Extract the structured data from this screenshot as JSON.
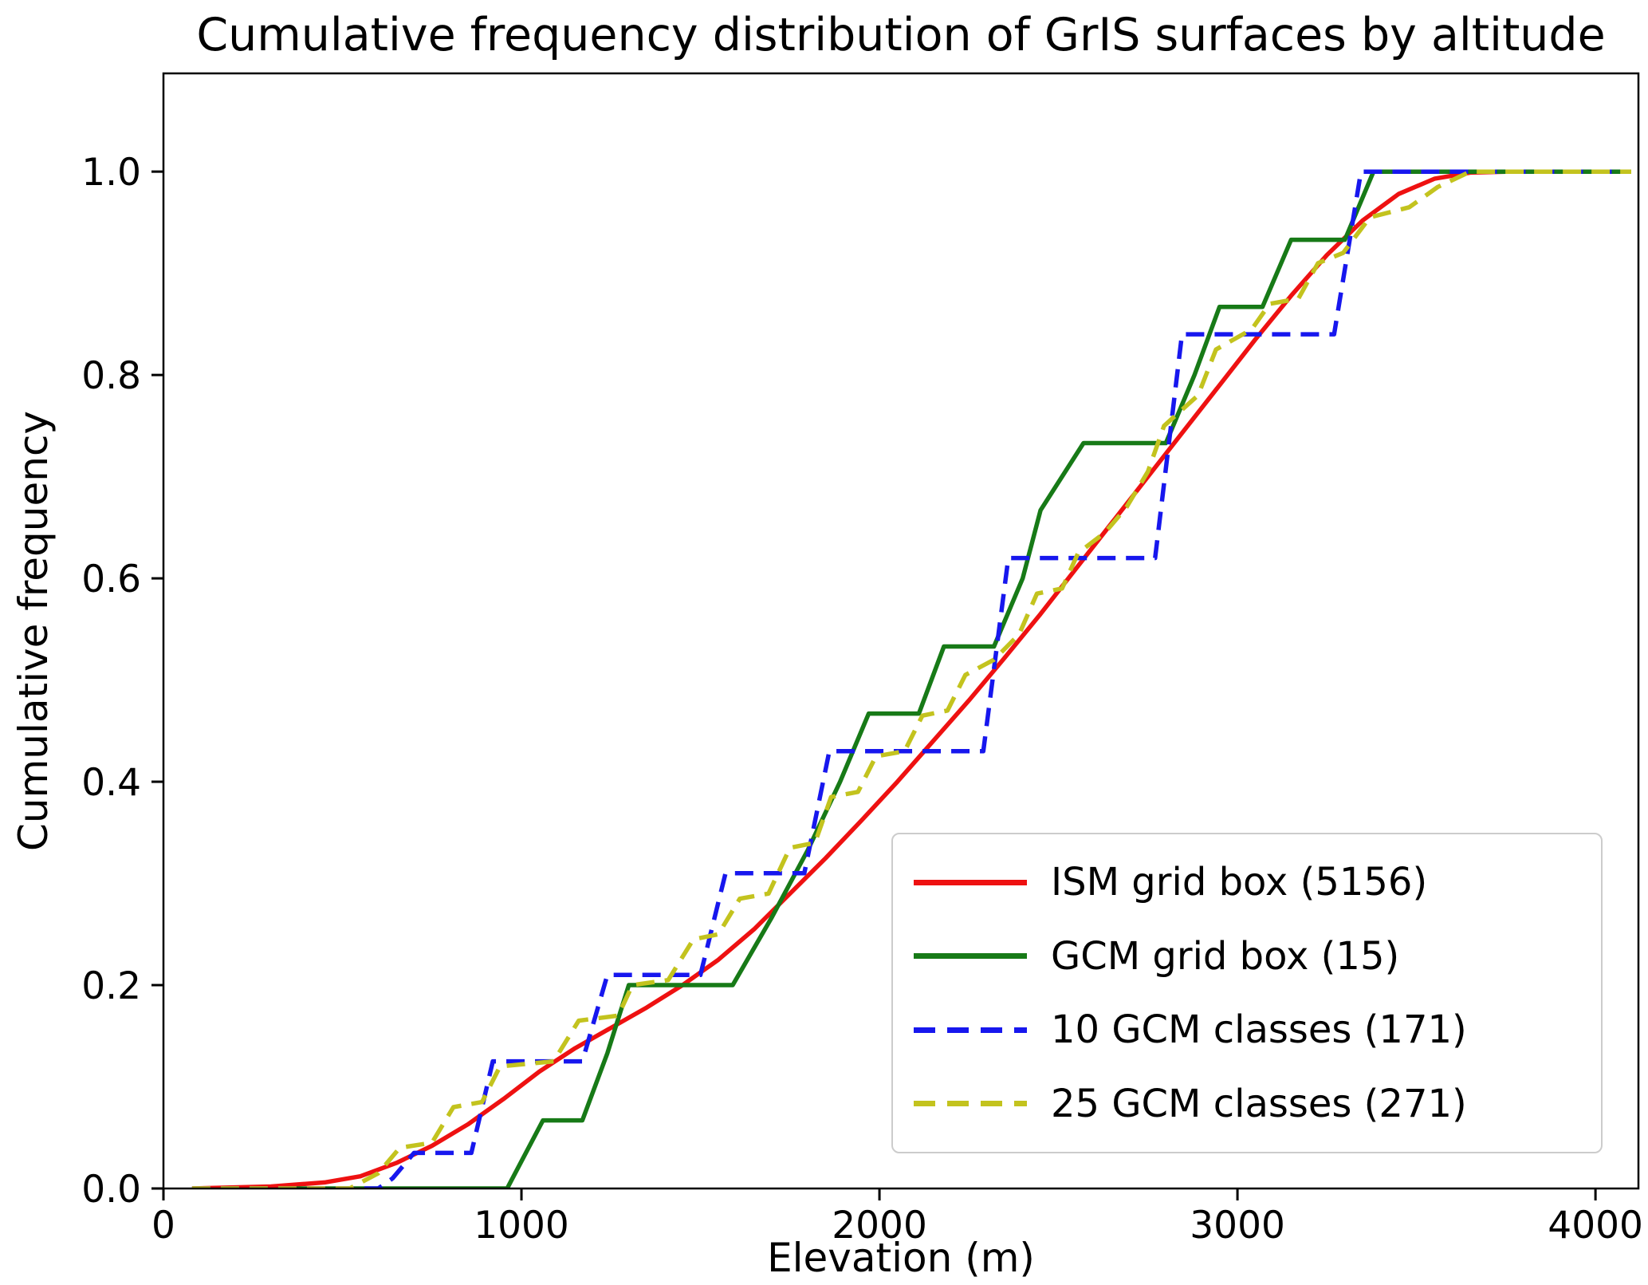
{
  "chart_data": {
    "type": "line",
    "title": "Cumulative frequency distribution of GrIS surfaces by altitude",
    "xlabel": "Elevation (m)",
    "ylabel": "Cumulative frequency",
    "xlim": [
      0,
      4120
    ],
    "ylim": [
      0,
      1.0966
    ],
    "x_ticks": [
      0,
      1000,
      2000,
      3000,
      4000
    ],
    "x_tick_labels": [
      "0",
      "1000",
      "2000",
      "3000",
      "4000"
    ],
    "y_ticks": [
      0.0,
      0.2,
      0.4,
      0.6,
      0.8,
      1.0
    ],
    "y_tick_labels": [
      "0.0",
      "0.2",
      "0.4",
      "0.6",
      "0.8",
      "1.0"
    ],
    "grid": false,
    "legend_position": "lower right",
    "series": [
      {
        "name": "ISM grid box (5156)",
        "slug": "ism-grid-box",
        "color": "#ee1111",
        "style": "solid",
        "points": [
          [
            80,
            0
          ],
          [
            300,
            0.002
          ],
          [
            450,
            0.006
          ],
          [
            550,
            0.012
          ],
          [
            650,
            0.025
          ],
          [
            750,
            0.042
          ],
          [
            850,
            0.063
          ],
          [
            950,
            0.088
          ],
          [
            1050,
            0.115
          ],
          [
            1150,
            0.138
          ],
          [
            1250,
            0.158
          ],
          [
            1350,
            0.178
          ],
          [
            1450,
            0.2
          ],
          [
            1550,
            0.225
          ],
          [
            1650,
            0.255
          ],
          [
            1750,
            0.29
          ],
          [
            1850,
            0.325
          ],
          [
            1950,
            0.362
          ],
          [
            2050,
            0.4
          ],
          [
            2150,
            0.44
          ],
          [
            2250,
            0.48
          ],
          [
            2350,
            0.522
          ],
          [
            2450,
            0.565
          ],
          [
            2550,
            0.61
          ],
          [
            2650,
            0.655
          ],
          [
            2750,
            0.7
          ],
          [
            2850,
            0.745
          ],
          [
            2950,
            0.79
          ],
          [
            3050,
            0.835
          ],
          [
            3150,
            0.878
          ],
          [
            3250,
            0.918
          ],
          [
            3350,
            0.952
          ],
          [
            3450,
            0.978
          ],
          [
            3550,
            0.993
          ],
          [
            3650,
            0.999
          ],
          [
            3750,
            1.0
          ],
          [
            4100,
            1.0
          ]
        ]
      },
      {
        "name": "GCM grid box (15)",
        "slug": "gcm-grid-box",
        "color": "#177a17",
        "style": "solid",
        "points": [
          [
            350,
            0
          ],
          [
            960,
            0
          ],
          [
            1060,
            0.067
          ],
          [
            1170,
            0.067
          ],
          [
            1240,
            0.133
          ],
          [
            1300,
            0.2
          ],
          [
            1590,
            0.2
          ],
          [
            1700,
            0.267
          ],
          [
            1800,
            0.333
          ],
          [
            1890,
            0.4
          ],
          [
            1970,
            0.467
          ],
          [
            2110,
            0.467
          ],
          [
            2180,
            0.533
          ],
          [
            2320,
            0.533
          ],
          [
            2400,
            0.6
          ],
          [
            2450,
            0.667
          ],
          [
            2570,
            0.733
          ],
          [
            2800,
            0.733
          ],
          [
            2880,
            0.8
          ],
          [
            2950,
            0.867
          ],
          [
            3070,
            0.867
          ],
          [
            3150,
            0.933
          ],
          [
            3300,
            0.933
          ],
          [
            3380,
            1.0
          ],
          [
            4100,
            1.0
          ]
        ]
      },
      {
        "name": "10 GCM classes (171)",
        "slug": "gcm-10-classes",
        "color": "#1717ee",
        "style": "dashed",
        "points": [
          [
            80,
            0
          ],
          [
            600,
            0
          ],
          [
            640,
            0.01
          ],
          [
            700,
            0.035
          ],
          [
            860,
            0.035
          ],
          [
            920,
            0.125
          ],
          [
            1170,
            0.125
          ],
          [
            1240,
            0.21
          ],
          [
            1500,
            0.21
          ],
          [
            1570,
            0.31
          ],
          [
            1790,
            0.31
          ],
          [
            1860,
            0.43
          ],
          [
            2290,
            0.43
          ],
          [
            2360,
            0.62
          ],
          [
            2770,
            0.62
          ],
          [
            2845,
            0.84
          ],
          [
            3270,
            0.84
          ],
          [
            3345,
            1.0
          ],
          [
            4100,
            1.0
          ]
        ]
      },
      {
        "name": "25 GCM classes (271)",
        "slug": "gcm-25-classes",
        "color": "#c3c31e",
        "style": "dashed",
        "points": [
          [
            80,
            0
          ],
          [
            520,
            0
          ],
          [
            600,
            0.015
          ],
          [
            660,
            0.04
          ],
          [
            750,
            0.045
          ],
          [
            810,
            0.08
          ],
          [
            890,
            0.085
          ],
          [
            940,
            0.12
          ],
          [
            1090,
            0.125
          ],
          [
            1160,
            0.165
          ],
          [
            1270,
            0.17
          ],
          [
            1310,
            0.2
          ],
          [
            1410,
            0.205
          ],
          [
            1480,
            0.245
          ],
          [
            1550,
            0.25
          ],
          [
            1610,
            0.285
          ],
          [
            1690,
            0.29
          ],
          [
            1750,
            0.335
          ],
          [
            1820,
            0.34
          ],
          [
            1865,
            0.385
          ],
          [
            1940,
            0.39
          ],
          [
            1990,
            0.425
          ],
          [
            2070,
            0.43
          ],
          [
            2120,
            0.465
          ],
          [
            2190,
            0.47
          ],
          [
            2240,
            0.505
          ],
          [
            2320,
            0.52
          ],
          [
            2390,
            0.545
          ],
          [
            2440,
            0.585
          ],
          [
            2510,
            0.59
          ],
          [
            2555,
            0.625
          ],
          [
            2630,
            0.645
          ],
          [
            2690,
            0.67
          ],
          [
            2750,
            0.705
          ],
          [
            2795,
            0.75
          ],
          [
            2890,
            0.78
          ],
          [
            2940,
            0.825
          ],
          [
            3040,
            0.845
          ],
          [
            3090,
            0.87
          ],
          [
            3170,
            0.875
          ],
          [
            3225,
            0.91
          ],
          [
            3295,
            0.92
          ],
          [
            3370,
            0.955
          ],
          [
            3480,
            0.965
          ],
          [
            3560,
            0.985
          ],
          [
            3650,
            1.0
          ],
          [
            4100,
            1.0
          ]
        ]
      }
    ]
  }
}
